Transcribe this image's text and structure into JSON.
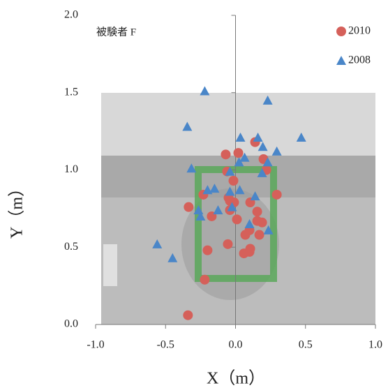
{
  "chart_data": {
    "type": "scatter",
    "annotation": "被験者 F",
    "x_label": "X（m）",
    "y_label": "Y（m）",
    "xlim": [
      -1.0,
      1.0
    ],
    "ylim": [
      0.0,
      2.0
    ],
    "xticks": [
      {
        "value": -1.0,
        "label": "-1.0"
      },
      -0.5,
      {
        "value": 0.0,
        "label": "0.0"
      },
      0.5,
      {
        "value": 1.0,
        "label": "1.0"
      }
    ],
    "yticks": [
      {
        "value": 0.0,
        "label": "0.0"
      },
      0.5,
      {
        "value": 1.0,
        "label": "1.0"
      },
      1.5,
      {
        "value": 2.0,
        "label": "2.0"
      }
    ],
    "legend_position": "upper right",
    "series": [
      {
        "name": "2010",
        "color": "#d5605a",
        "marker": "circle",
        "x": [
          -0.34,
          -0.22,
          -0.2,
          -0.055,
          0.06,
          0.1,
          0.105,
          0.07,
          0.17,
          0.19,
          0.155,
          0.155,
          -0.335,
          -0.23,
          -0.17,
          -0.04,
          -0.01,
          0.01,
          -0.04,
          0.105,
          0.295,
          -0.015,
          -0.06,
          -0.07,
          0.02,
          0.2,
          0.22,
          0.14,
          -0.05,
          0.1
        ],
        "y": [
          0.06,
          0.29,
          0.48,
          0.52,
          0.46,
          0.47,
          0.49,
          0.58,
          0.58,
          0.66,
          0.67,
          0.73,
          0.76,
          0.84,
          0.7,
          0.8,
          0.79,
          0.68,
          0.74,
          0.79,
          0.84,
          0.93,
          0.99,
          1.1,
          1.11,
          1.07,
          1.0,
          1.18,
          0.82,
          0.61
        ]
      },
      {
        "name": "2008",
        "color": "#4a86c8",
        "marker": "triangle",
        "x": [
          -0.56,
          -0.45,
          -0.22,
          -0.345,
          -0.315,
          0.23,
          0.47,
          0.295,
          0.035,
          0.16,
          0.195,
          0.065,
          0.025,
          -0.04,
          0.03,
          -0.04,
          -0.15,
          -0.2,
          0.19,
          0.23,
          0.14,
          -0.125,
          -0.265,
          -0.25,
          -0.025,
          0.1,
          0.235
        ],
        "y": [
          0.52,
          0.43,
          1.51,
          1.28,
          1.01,
          1.45,
          1.21,
          1.12,
          1.21,
          1.21,
          1.15,
          1.08,
          1.05,
          0.99,
          0.87,
          0.86,
          0.88,
          0.87,
          0.98,
          1.05,
          0.83,
          0.74,
          0.74,
          0.7,
          0.76,
          0.65,
          0.61
        ]
      }
    ]
  }
}
